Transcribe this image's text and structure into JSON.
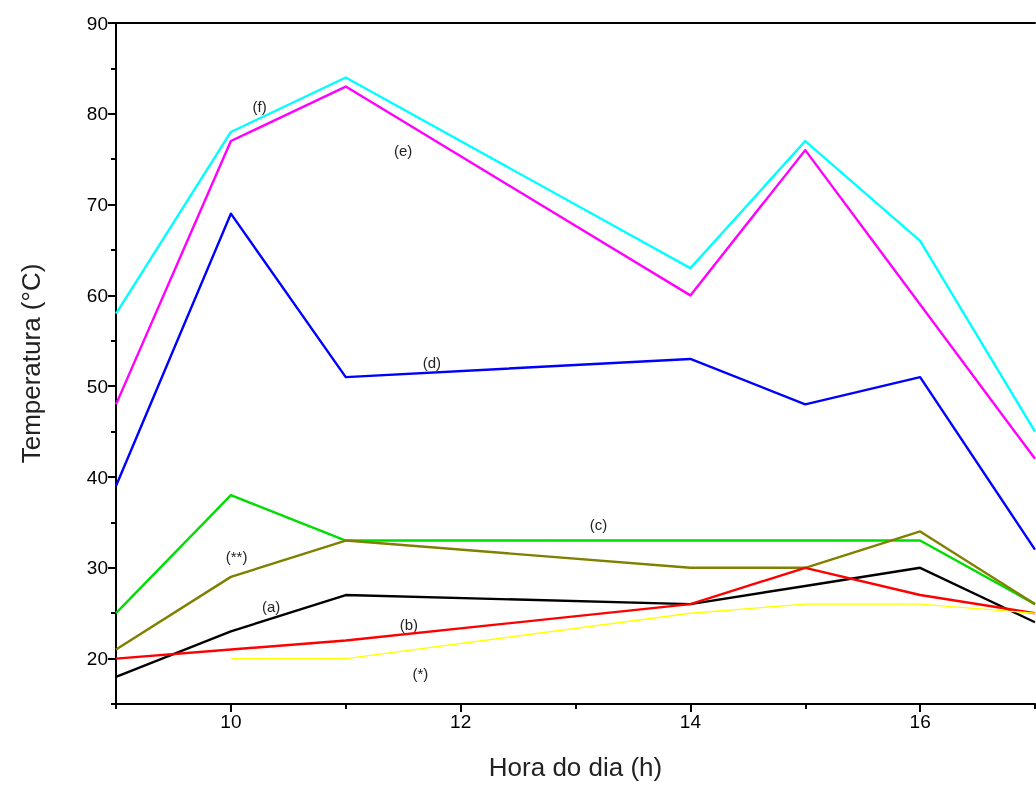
{
  "chart_data": {
    "type": "line",
    "xlabel": "Hora do dia (h)",
    "ylabel": "Temperatura (°C)",
    "xlim": [
      9,
      17
    ],
    "xticks": [
      {
        "value": 9,
        "label": null
      },
      10,
      {
        "value": 11,
        "label": null
      },
      12,
      {
        "value": 13,
        "label": null
      },
      14,
      {
        "value": 15,
        "label": null
      },
      16,
      {
        "value": 17,
        "label": null
      }
    ],
    "ylim": [
      15,
      90
    ],
    "yticks": [
      {
        "value": 15,
        "label": null
      },
      20,
      {
        "value": 25,
        "label": null
      },
      30,
      {
        "value": 35,
        "label": null
      },
      40,
      {
        "value": 45,
        "label": null
      },
      50,
      {
        "value": 55,
        "label": null
      },
      60,
      {
        "value": 65,
        "label": null
      },
      70,
      {
        "value": 75,
        "label": null
      },
      80,
      {
        "value": 85,
        "label": null
      },
      90
    ],
    "grid": false,
    "marker": "none",
    "line_style": "solid",
    "series": [
      {
        "name": "(f)",
        "color": "#00ffff",
        "x": [
          9,
          10,
          11,
          14,
          15,
          16,
          17
        ],
        "values": [
          58,
          78,
          84,
          63,
          77,
          66,
          45
        ]
      },
      {
        "name": "(e)",
        "color": "#ff00ff",
        "x": [
          9,
          10,
          11,
          14,
          15,
          17
        ],
        "values": [
          48,
          77,
          83,
          60,
          76,
          42
        ]
      },
      {
        "name": "(d)",
        "color": "#0000ff",
        "x": [
          9,
          10,
          11,
          14,
          15,
          16,
          17
        ],
        "values": [
          39,
          69,
          51,
          53,
          48,
          51,
          32
        ]
      },
      {
        "name": "(c)",
        "color": "#00dd00",
        "x": [
          9,
          10,
          11,
          14,
          15,
          16,
          17
        ],
        "values": [
          25,
          38,
          33,
          33,
          33,
          33,
          26
        ]
      },
      {
        "name": "(**)",
        "color": "#808000",
        "x": [
          9,
          10,
          11,
          14,
          15,
          16,
          17
        ],
        "values": [
          21,
          29,
          33,
          30,
          30,
          34,
          26
        ]
      },
      {
        "name": "(a)",
        "color": "#000000",
        "x": [
          9,
          10,
          11,
          14,
          15,
          16,
          17
        ],
        "values": [
          18,
          23,
          27,
          26,
          28,
          30,
          24
        ]
      },
      {
        "name": "(b)",
        "color": "#ff0000",
        "x": [
          9,
          10,
          11,
          14,
          15,
          16,
          17
        ],
        "values": [
          20,
          21,
          22,
          26,
          30,
          27,
          25
        ]
      },
      {
        "name": "(*)",
        "color": "#ffff00",
        "x": [
          10,
          11,
          14,
          15,
          16,
          17
        ],
        "values": [
          20,
          20,
          25,
          26,
          26,
          25
        ]
      }
    ]
  }
}
